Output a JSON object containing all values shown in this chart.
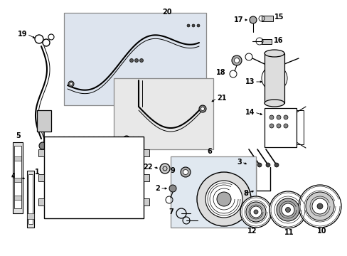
{
  "bg_color": "#ffffff",
  "lc": "#000000",
  "gray1": "#cccccc",
  "gray2": "#aaaaaa",
  "box20_fill": "#dde4ee",
  "box21_fill": "#e8e8e8",
  "box6_fill": "#e0e8f0",
  "figw": 4.89,
  "figh": 3.6,
  "dpi": 100
}
